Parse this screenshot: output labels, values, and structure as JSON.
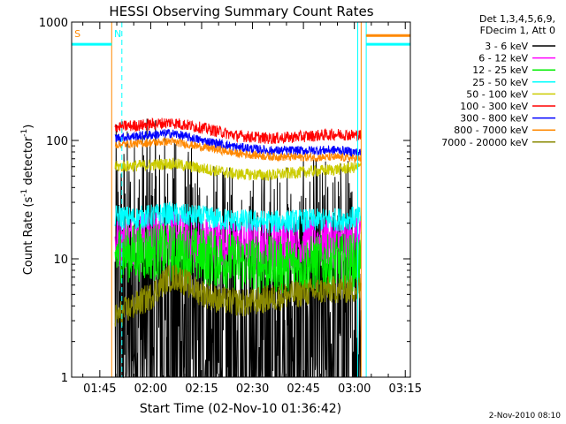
{
  "chart_data": {
    "type": "line",
    "title": "HESSI Observing Summary Count Rates",
    "xlabel": "Start Time (02-Nov-10 01:36:42)",
    "ylabel_parts": [
      "Count Rate (s",
      "-1",
      " detector",
      "-1",
      ")"
    ],
    "y_scale": "log",
    "ylim": [
      1,
      1000
    ],
    "y_ticks": [
      {
        "value": 1,
        "label": "1"
      },
      {
        "value": 10,
        "label": "10"
      },
      {
        "value": 100,
        "label": "100"
      },
      {
        "value": 1000,
        "label": "1000"
      }
    ],
    "xlim_minutes": [
      96.7,
      196.5
    ],
    "x_ticks": [
      {
        "minute": 105,
        "label": "01:45"
      },
      {
        "minute": 120,
        "label": "02:00"
      },
      {
        "minute": 135,
        "label": "02:15"
      },
      {
        "minute": 150,
        "label": "02:30"
      },
      {
        "minute": 165,
        "label": "02:45"
      },
      {
        "minute": 180,
        "label": "03:00"
      },
      {
        "minute": 195,
        "label": "03:15"
      }
    ],
    "legend_header": [
      "Det 1,3,4,5,6,9,",
      "FDecim 1, Att 0"
    ],
    "legend_position": "right",
    "data_window_minutes": [
      109.5,
      182.0
    ],
    "series": [
      {
        "name": "3 - 6 keV",
        "color": "#000000",
        "noise": 1.7,
        "points": [
          [
            109.5,
            2.8
          ],
          [
            120,
            3.2
          ],
          [
            126,
            2.4
          ],
          [
            138,
            1.3
          ],
          [
            148,
            1.2
          ],
          [
            158,
            1.4
          ],
          [
            170,
            1.5
          ],
          [
            182,
            1.8
          ]
        ]
      },
      {
        "name": "6 - 12 keV",
        "color": "#ff00ff",
        "noise": 0.22,
        "points": [
          [
            109.5,
            14
          ],
          [
            120,
            15.5
          ],
          [
            130,
            15
          ],
          [
            140,
            13.5
          ],
          [
            150,
            13
          ],
          [
            160,
            13.5
          ],
          [
            170,
            14
          ],
          [
            182,
            13.5
          ]
        ]
      },
      {
        "name": "12 - 25 keV",
        "color": "#00ee00",
        "noise": 0.25,
        "points": [
          [
            109.5,
            11
          ],
          [
            120,
            11.5
          ],
          [
            130,
            11
          ],
          [
            140,
            10
          ],
          [
            150,
            9
          ],
          [
            160,
            8.8
          ],
          [
            170,
            9
          ],
          [
            182,
            9.5
          ]
        ]
      },
      {
        "name": "25 - 50 keV",
        "color": "#00ffff",
        "noise": 0.1,
        "points": [
          [
            109.5,
            23
          ],
          [
            115,
            22
          ],
          [
            125,
            24
          ],
          [
            135,
            22.5
          ],
          [
            145,
            21
          ],
          [
            155,
            20.5
          ],
          [
            165,
            21
          ],
          [
            175,
            21.5
          ],
          [
            182,
            22.5
          ]
        ]
      },
      {
        "name": "50 - 100 keV",
        "color": "#cccc00",
        "noise": 0.05,
        "points": [
          [
            109.5,
            60
          ],
          [
            120,
            62
          ],
          [
            126,
            64
          ],
          [
            135,
            58
          ],
          [
            145,
            52
          ],
          [
            155,
            51
          ],
          [
            165,
            54
          ],
          [
            175,
            57
          ],
          [
            182,
            60
          ]
        ]
      },
      {
        "name": "100 - 300 keV",
        "color": "#ff0000",
        "noise": 0.05,
        "points": [
          [
            109.5,
            130
          ],
          [
            118,
            135
          ],
          [
            126,
            142
          ],
          [
            135,
            128
          ],
          [
            145,
            110
          ],
          [
            155,
            104
          ],
          [
            165,
            108
          ],
          [
            175,
            113
          ],
          [
            182,
            110
          ]
        ]
      },
      {
        "name": "300 - 800 keV",
        "color": "#0000ff",
        "noise": 0.04,
        "points": [
          [
            109.5,
            105
          ],
          [
            118,
            110
          ],
          [
            126,
            115
          ],
          [
            135,
            100
          ],
          [
            145,
            88
          ],
          [
            155,
            82
          ],
          [
            165,
            82
          ],
          [
            175,
            83
          ],
          [
            182,
            78
          ]
        ]
      },
      {
        "name": "800 - 7000 keV",
        "color": "#ff8800",
        "noise": 0.035,
        "points": [
          [
            109.5,
            92
          ],
          [
            118,
            95
          ],
          [
            126,
            98
          ],
          [
            135,
            88
          ],
          [
            145,
            78
          ],
          [
            155,
            73
          ],
          [
            165,
            72
          ],
          [
            175,
            72
          ],
          [
            182,
            70
          ]
        ]
      },
      {
        "name": "7000 - 20000 keV",
        "color": "#888800",
        "noise": 0.12,
        "points": [
          [
            109.5,
            3.2
          ],
          [
            115,
            4.0
          ],
          [
            120,
            4.8
          ],
          [
            125,
            6.8
          ],
          [
            128,
            7.0
          ],
          [
            133,
            5.5
          ],
          [
            140,
            4.5
          ],
          [
            148,
            4.2
          ],
          [
            158,
            4.8
          ],
          [
            168,
            5.3
          ],
          [
            175,
            5.5
          ],
          [
            182,
            5.5
          ]
        ]
      }
    ],
    "flag_lines": [
      {
        "label": "S",
        "color": "#ff8800",
        "label_minute": 97.5,
        "level": 1000
      },
      {
        "label": "N",
        "color": "#00ffff",
        "label_minute": 109.2,
        "level": 1000
      }
    ],
    "saa_bars": [
      {
        "color": "#00ffff",
        "start": 96.7,
        "end": 108.5,
        "level": 650
      },
      {
        "color": "#00ffff",
        "start": 183.5,
        "end": 196.5,
        "level": 650
      },
      {
        "color": "#ff8800",
        "start": 183.5,
        "end": 196.5,
        "level": 770
      }
    ],
    "vertical_markers": [
      {
        "minute": 96.7,
        "color": "#00ffff",
        "style": "dashed"
      },
      {
        "minute": 108.5,
        "color": "#ff8800",
        "style": "solid"
      },
      {
        "minute": 111.5,
        "color": "#00ffff",
        "style": "dashed"
      },
      {
        "minute": 181.0,
        "color": "#00ffff",
        "style": "solid"
      },
      {
        "minute": 182.0,
        "color": "#ff8800",
        "style": "solid"
      },
      {
        "minute": 183.5,
        "color": "#00ffff",
        "style": "solid"
      },
      {
        "minute": 196.5,
        "color": "#ff8800",
        "style": "dashed"
      }
    ],
    "footer": "2-Nov-2010 08:10"
  }
}
